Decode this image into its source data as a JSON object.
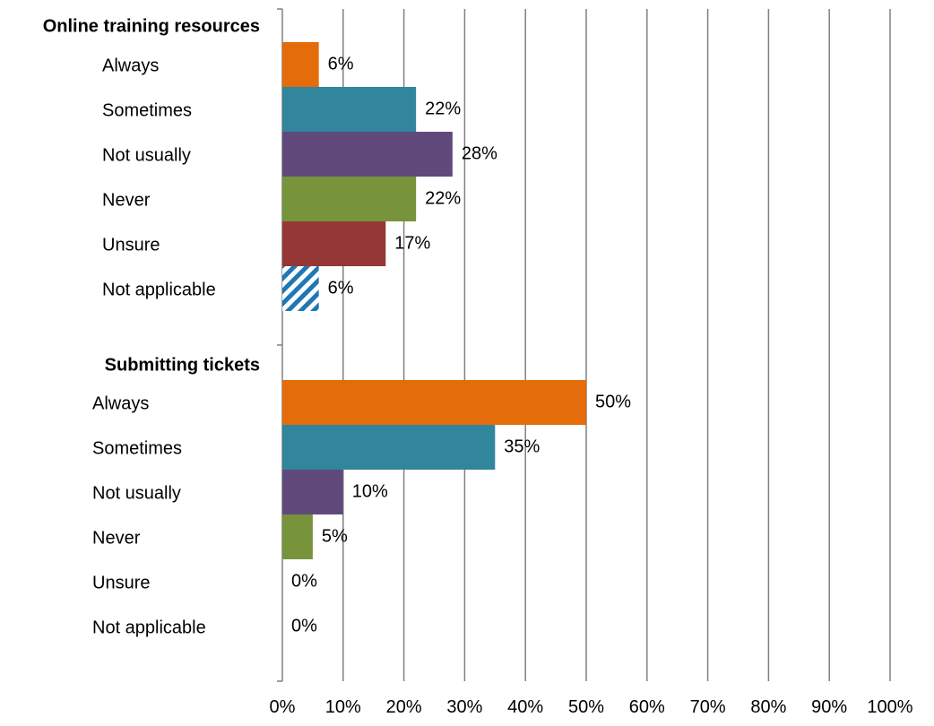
{
  "chart_data": {
    "type": "bar",
    "orientation": "horizontal",
    "groups": [
      {
        "name": "Online training resources",
        "categories": [
          "Always",
          "Sometimes",
          "Not usually",
          "Never",
          "Unsure",
          "Not applicable"
        ],
        "values": [
          6,
          22,
          28,
          22,
          17,
          6
        ],
        "labels": [
          "6%",
          "22%",
          "28%",
          "22%",
          "17%",
          "6%"
        ]
      },
      {
        "name": "Submitting tickets",
        "categories": [
          "Always",
          "Sometimes",
          "Not usually",
          "Never",
          "Unsure",
          "Not applicable"
        ],
        "values": [
          50,
          35,
          10,
          5,
          0,
          0
        ],
        "labels": [
          "50%",
          "35%",
          "10%",
          "5%",
          "0%",
          "0%"
        ]
      }
    ],
    "category_colors": [
      "#E46C0A",
      "#31859C",
      "#604A7B",
      "#77933C",
      "#953735",
      "#1F77B4"
    ],
    "category_patterns": [
      "solid",
      "solid",
      "solid",
      "solid",
      "solid",
      "diagonal-hatch"
    ],
    "x_ticks": [
      "0%",
      "10%",
      "20%",
      "30%",
      "40%",
      "50%",
      "60%",
      "70%",
      "80%",
      "90%",
      "100%"
    ],
    "xlim": [
      0,
      100
    ],
    "grid": true,
    "legend": "none"
  }
}
